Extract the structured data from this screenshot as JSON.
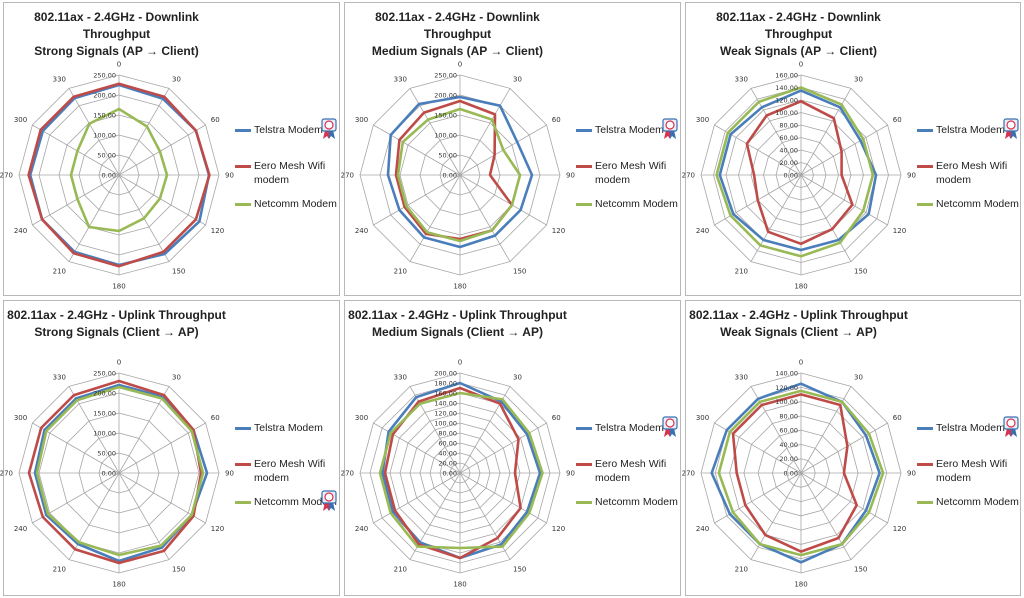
{
  "colors": {
    "telstra": "#4a7ebb",
    "eero": "#be4b48",
    "netcomm": "#98b954",
    "grid": "#a6a6a6"
  },
  "badge_icon": "award-ribbon-icon",
  "chart_data": [
    {
      "type": "radar",
      "title_line1": "802.11ax - 2.4GHz - Downlink  Throughput",
      "title_line2": "Strong Signals (AP → Client)",
      "angles": [
        "0",
        "30",
        "60",
        "90",
        "120",
        "150",
        "180",
        "210",
        "240",
        "270",
        "300",
        "330"
      ],
      "rmax": 250,
      "ticks": [
        "0.00",
        "50.00",
        "100.00",
        "150.00",
        "200.00",
        "250.00"
      ],
      "tick_values": [
        0,
        50,
        100,
        150,
        200,
        250
      ],
      "series": [
        {
          "name": "Telstra Modem",
          "key": "telstra",
          "values": [
            225,
            220,
            222,
            225,
            232,
            228,
            225,
            222,
            222,
            222,
            220,
            222
          ]
        },
        {
          "name": "Eero Mesh Wifi modem",
          "key": "eero",
          "values": [
            228,
            226,
            222,
            226,
            222,
            222,
            228,
            226,
            222,
            226,
            226,
            226
          ]
        },
        {
          "name": "Netcomm Modem",
          "key": "netcomm",
          "values": [
            165,
            140,
            118,
            120,
            118,
            125,
            140,
            150,
            120,
            120,
            120,
            148
          ]
        }
      ],
      "legend": [
        "Telstra Modem",
        "Eero Mesh Wifi modem",
        "Netcomm Modem"
      ],
      "badge_series": "Telstra Modem"
    },
    {
      "type": "radar",
      "title_line1": "802.11ax - 2.4GHz - Downlink  Throughput",
      "title_line2": "Medium Signals (AP → Client)",
      "angles": [
        "0",
        "30",
        "60",
        "90",
        "120",
        "150",
        "180",
        "210",
        "240",
        "270",
        "300",
        "330"
      ],
      "rmax": 250,
      "ticks": [
        "0.00",
        "50.00",
        "100.00",
        "150.00",
        "200.00",
        "250.00"
      ],
      "tick_values": [
        0,
        50,
        100,
        150,
        200,
        250
      ],
      "series": [
        {
          "name": "Telstra Modem",
          "key": "telstra",
          "values": [
            195,
            200,
            165,
            180,
            175,
            175,
            180,
            180,
            175,
            180,
            200,
            205
          ]
        },
        {
          "name": "Eero Mesh Wifi modem",
          "key": "eero",
          "values": [
            185,
            175,
            100,
            75,
            150,
            160,
            160,
            170,
            160,
            160,
            175,
            180
          ]
        },
        {
          "name": "Netcomm Modem",
          "key": "netcomm",
          "values": [
            165,
            160,
            125,
            150,
            150,
            160,
            165,
            165,
            155,
            155,
            165,
            160
          ]
        }
      ],
      "legend": [
        "Telstra Modem",
        "Eero Mesh Wifi modem",
        "Netcomm Modem"
      ],
      "badge_series": "Telstra Modem"
    },
    {
      "type": "radar",
      "title_line1": "802.11ax - 2.4GHz - Downlink  Throughput",
      "title_line2": "Weak Signals (AP → Client)",
      "angles": [
        "0",
        "30",
        "60",
        "90",
        "120",
        "150",
        "180",
        "210",
        "240",
        "270",
        "300",
        "330"
      ],
      "rmax": 160,
      "ticks": [
        "0.00",
        "20.00",
        "40.00",
        "60.00",
        "80.00",
        "100.00",
        "120.00",
        "140.00",
        "160.00"
      ],
      "tick_values": [
        0,
        20,
        40,
        60,
        80,
        100,
        120,
        140,
        160
      ],
      "series": [
        {
          "name": "Telstra Modem",
          "key": "telstra",
          "values": [
            135,
            125,
            110,
            120,
            125,
            120,
            120,
            120,
            125,
            130,
            130,
            125
          ]
        },
        {
          "name": "Eero Mesh Wifi modem",
          "key": "eero",
          "values": [
            118,
            105,
            75,
            65,
            95,
            100,
            110,
            105,
            80,
            75,
            100,
            110
          ]
        },
        {
          "name": "Netcomm Modem",
          "key": "netcomm",
          "values": [
            140,
            130,
            115,
            115,
            115,
            125,
            130,
            130,
            130,
            135,
            135,
            135
          ]
        }
      ],
      "legend": [
        "Telstra Modem",
        "Eero Mesh Wifi modem",
        "Netcomm Modem"
      ],
      "badge_series": "Telstra Modem"
    },
    {
      "type": "radar",
      "title_line1": "802.11ax - 2.4GHz - Uplink  Throughput",
      "title_line2": "Strong Signals (Client → AP)",
      "angles": [
        "0",
        "30",
        "60",
        "90",
        "120",
        "150",
        "180",
        "210",
        "240",
        "270",
        "300",
        "330"
      ],
      "rmax": 250,
      "ticks": [
        "0.00",
        "50.00",
        "100.00",
        "150.00",
        "200.00",
        "250.00"
      ],
      "tick_values": [
        0,
        50,
        100,
        150,
        200,
        250
      ],
      "series": [
        {
          "name": "Telstra Modem",
          "key": "telstra",
          "values": [
            220,
            220,
            215,
            220,
            210,
            215,
            220,
            205,
            210,
            210,
            215,
            215
          ]
        },
        {
          "name": "Eero Mesh Wifi modem",
          "key": "eero",
          "values": [
            230,
            225,
            215,
            205,
            215,
            225,
            225,
            220,
            220,
            225,
            225,
            225
          ]
        },
        {
          "name": "Netcomm Modem",
          "key": "netcomm",
          "values": [
            215,
            215,
            210,
            210,
            210,
            210,
            205,
            200,
            205,
            205,
            210,
            210
          ]
        }
      ],
      "legend": [
        "Telstra Modem",
        "Eero Mesh Wifi modem",
        "Netcomm Modem"
      ],
      "badge_series": "Netcomm Modem"
    },
    {
      "type": "radar",
      "title_line1": "802.11ax - 2.4GHz - Uplink  Throughput",
      "title_line2": "Medium Signals (Client → AP)",
      "angles": [
        "0",
        "30",
        "60",
        "90",
        "120",
        "150",
        "180",
        "210",
        "240",
        "270",
        "300",
        "330"
      ],
      "rmax": 200,
      "ticks": [
        "0.00",
        "20.00",
        "40.00",
        "60.00",
        "80.00",
        "100.00",
        "120.00",
        "140.00",
        "160.00",
        "180.00",
        "200.00"
      ],
      "tick_values": [
        0,
        20,
        40,
        60,
        80,
        100,
        120,
        140,
        160,
        180,
        200
      ],
      "series": [
        {
          "name": "Telstra Modem",
          "key": "telstra",
          "values": [
            180,
            165,
            155,
            160,
            155,
            165,
            170,
            160,
            155,
            155,
            165,
            175
          ]
        },
        {
          "name": "Eero Mesh Wifi modem",
          "key": "eero",
          "values": [
            170,
            160,
            135,
            110,
            140,
            150,
            170,
            165,
            150,
            150,
            155,
            165
          ]
        },
        {
          "name": "Netcomm Modem",
          "key": "netcomm",
          "values": [
            160,
            170,
            160,
            165,
            160,
            170,
            150,
            170,
            160,
            160,
            160,
            160
          ]
        }
      ],
      "legend": [
        "Telstra Modem",
        "Eero Mesh Wifi modem",
        "Netcomm Modem"
      ],
      "badge_series": "Telstra Modem"
    },
    {
      "type": "radar",
      "title_line1": "802.11ax - 2.4GHz - Uplink  Throughput",
      "title_line2": "Weak Signals (Client → AP)",
      "angles": [
        "0",
        "30",
        "60",
        "90",
        "120",
        "150",
        "180",
        "210",
        "240",
        "270",
        "300",
        "330"
      ],
      "rmax": 140,
      "ticks": [
        "0.00",
        "20.00",
        "40.00",
        "60.00",
        "80.00",
        "100.00",
        "120.00",
        "140.00"
      ],
      "tick_values": [
        0,
        20,
        40,
        60,
        80,
        100,
        120,
        140
      ],
      "series": [
        {
          "name": "Telstra Modem",
          "key": "telstra",
          "values": [
            125,
            115,
            105,
            110,
            105,
            115,
            125,
            115,
            115,
            125,
            120,
            120
          ]
        },
        {
          "name": "Eero Mesh Wifi modem",
          "key": "eero",
          "values": [
            110,
            110,
            75,
            60,
            90,
            105,
            110,
            100,
            90,
            90,
            110,
            110
          ]
        },
        {
          "name": "Netcomm Modem",
          "key": "netcomm",
          "values": [
            115,
            115,
            110,
            115,
            110,
            115,
            115,
            115,
            110,
            115,
            115,
            115
          ]
        }
      ],
      "legend": [
        "Telstra Modem",
        "Eero Mesh Wifi modem",
        "Netcomm Modem"
      ],
      "badge_series": "Telstra Modem"
    }
  ]
}
